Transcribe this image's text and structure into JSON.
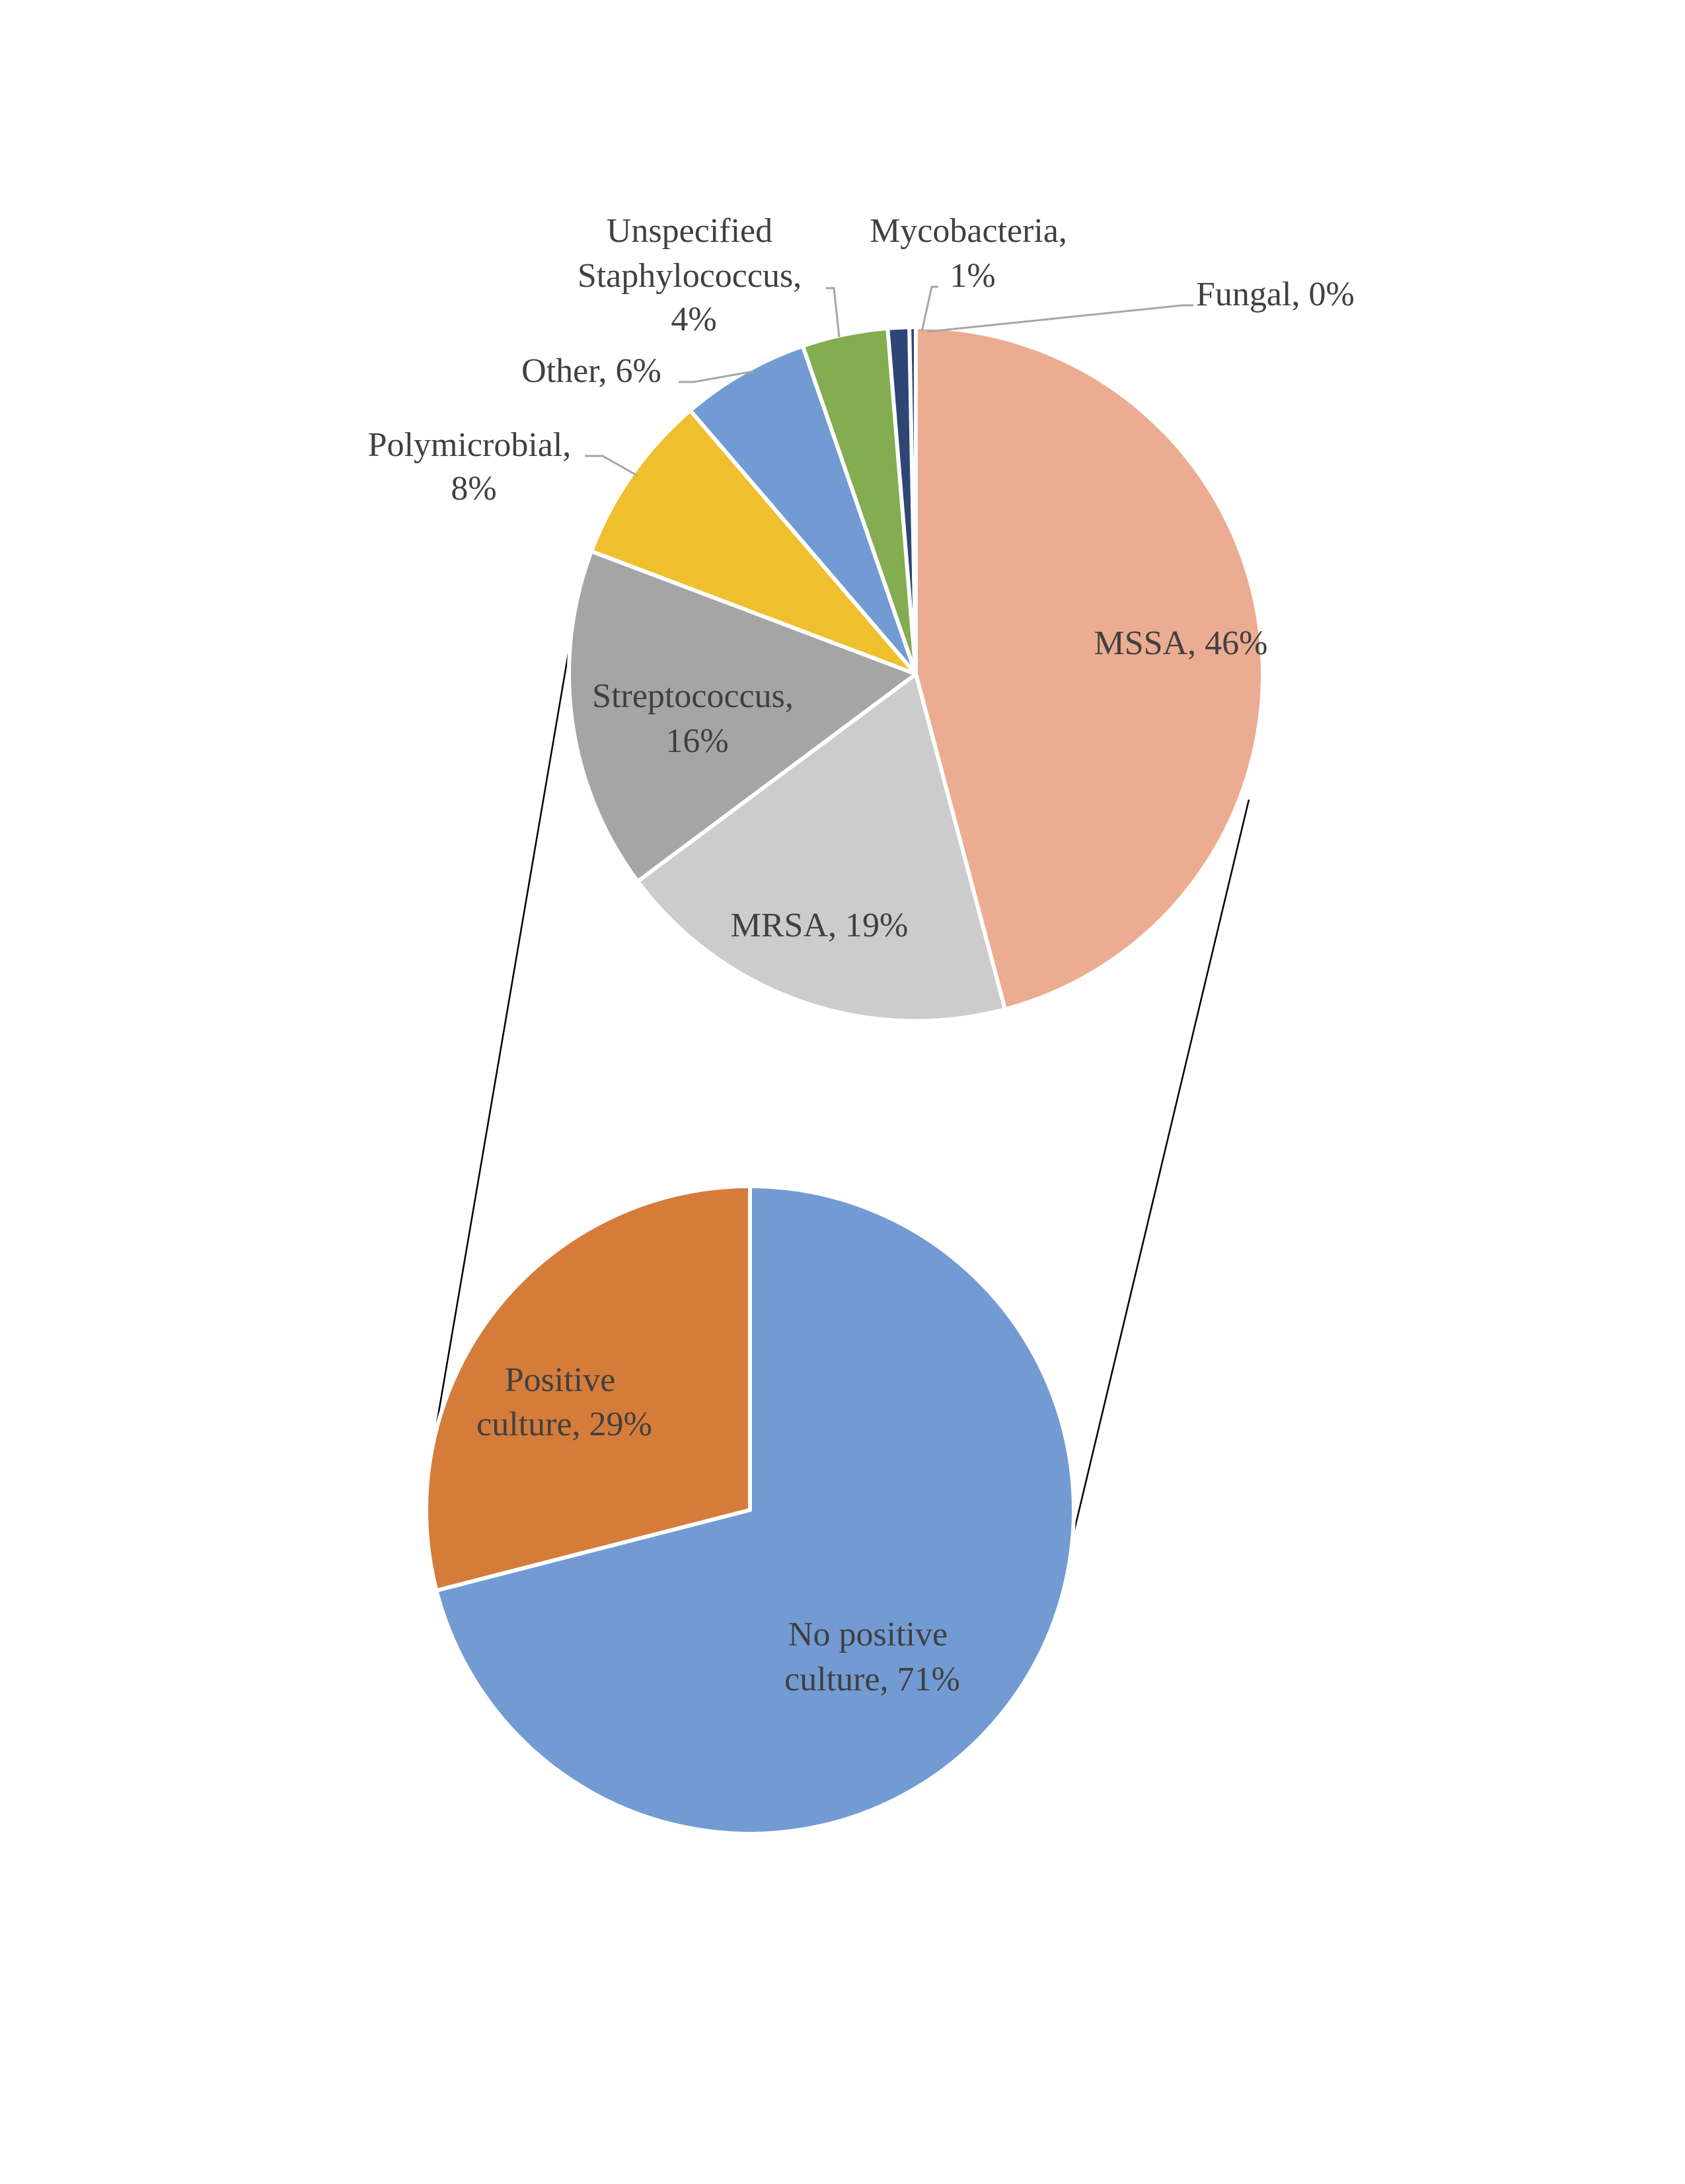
{
  "chart_data": [
    {
      "type": "pie",
      "role": "detail (bar-of-pie / pie-of-pie breakdown of positive cultures)",
      "title": "",
      "categories": [
        "MSSA",
        "MRSA",
        "Streptococcus",
        "Polymicrobial",
        "Other",
        "Unspecified Staphylococcus",
        "Mycobacteria",
        "Fungal"
      ],
      "values": [
        46,
        19,
        16,
        8,
        6,
        4,
        1,
        0.3
      ],
      "value_labels": [
        "46%",
        "19%",
        "16%",
        "8%",
        "6%",
        "4%",
        "1%",
        "0%"
      ],
      "colors": [
        "#ECAC91",
        "#CCCCCC",
        "#A5A5A5",
        "#F0BF2E",
        "#729BD3",
        "#84AC50",
        "#2F4576",
        "#2F4576"
      ],
      "labels": [
        {
          "lines": [
            "MSSA, 46%"
          ],
          "position": "inside"
        },
        {
          "lines": [
            "MRSA, 19%"
          ],
          "position": "inside"
        },
        {
          "lines": [
            "Streptococcus,",
            "16%"
          ],
          "position": "inside"
        },
        {
          "lines": [
            "Polymicrobial,",
            "8%"
          ],
          "position": "outside",
          "leader_line": true
        },
        {
          "lines": [
            "Other, 6%"
          ],
          "position": "outside",
          "leader_line": true
        },
        {
          "lines": [
            "Unspecified",
            "Staphylococcus,",
            "4%"
          ],
          "position": "outside",
          "leader_line": true
        },
        {
          "lines": [
            "Mycobacteria,",
            "1%"
          ],
          "position": "outside",
          "leader_line": true
        },
        {
          "lines": [
            "Fungal, 0%"
          ],
          "position": "outside",
          "leader_line": true
        }
      ],
      "start_angle_deg": 0,
      "direction": "clockwise"
    },
    {
      "type": "pie",
      "role": "main",
      "title": "",
      "categories": [
        "No positive culture",
        "Positive culture"
      ],
      "values": [
        71,
        29
      ],
      "value_labels": [
        "71%",
        "29%"
      ],
      "colors": [
        "#729BD3",
        "#D57C3B"
      ],
      "labels": [
        {
          "lines": [
            "No positive",
            "culture, 71%"
          ],
          "position": "inside"
        },
        {
          "lines": [
            "Positive",
            "culture, 29%"
          ],
          "position": "inside"
        }
      ],
      "start_angle_deg": 0,
      "direction": "clockwise",
      "expanded_slice": "Positive culture"
    }
  ],
  "legend": "none (data labels on slices)",
  "styles": {
    "slice_border": "#FFFFFF",
    "label_color": "#404040",
    "leader_color": "#A6A6A6",
    "connector_color": "#000000"
  }
}
